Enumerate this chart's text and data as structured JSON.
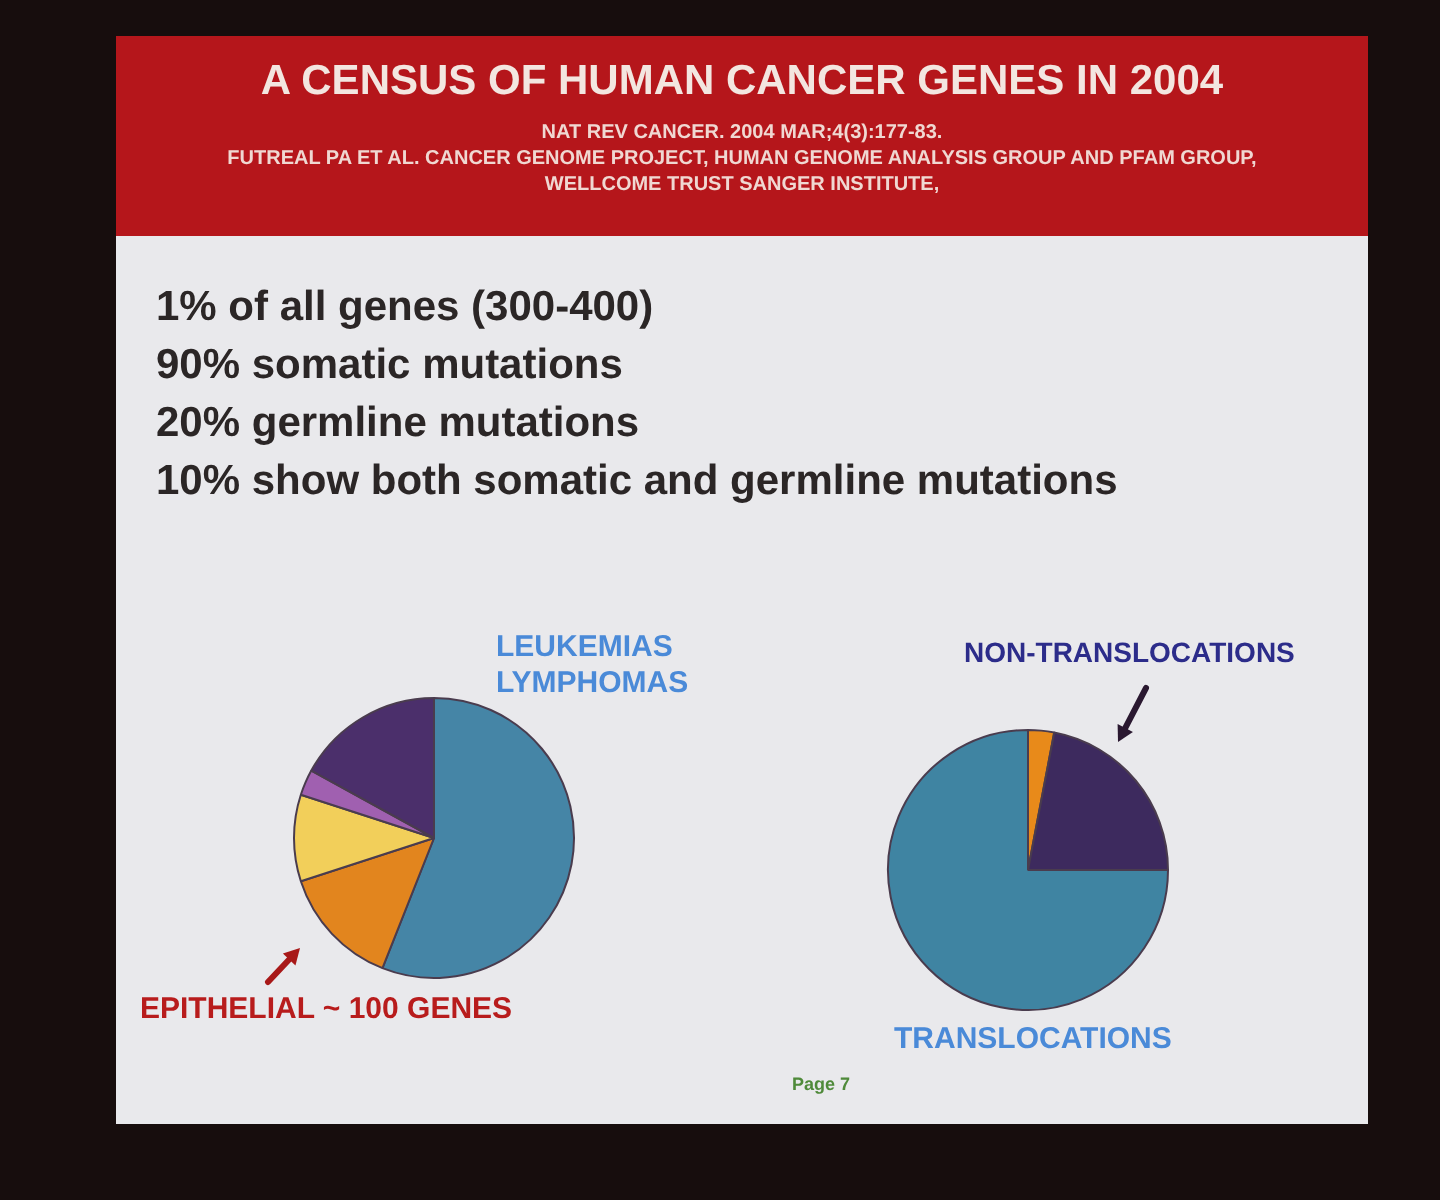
{
  "chart_data": [
    {
      "type": "pie",
      "title": "A CENSUS OF HUMAN CANCER GENES IN 2004",
      "subtitle": "NAT REV CANCER. 2004 MAR;4(3):177-83.\nFUTREAL PA ET AL. CANCER GENOME PROJECT, HUMAN GENOME ANALYSIS GROUP AND PFAM GROUP,\nWELLCOME TRUST SANGER INSTITUTE,",
      "annotations": [
        "1% of all genes (300-400)",
        "90% somatic mutations",
        "20% germline mutations",
        "10% show both somatic and germline mutations"
      ],
      "categories": [
        "LEUKEMIAS LYMPHOMAS",
        "EPITHELIAL ~ 100 GENES",
        null,
        null,
        null
      ],
      "values": [
        56,
        14,
        10,
        3,
        17
      ],
      "colors": [
        "#4585a6",
        "#e2851e",
        "#f2cf5a",
        "#a060b0",
        "#4b2f6b"
      ]
    },
    {
      "type": "pie",
      "annotations": [
        "Page 7"
      ],
      "categories": [
        null,
        "NON-TRANSLOCATIONS",
        "TRANSLOCATIONS"
      ],
      "values": [
        3,
        22,
        75
      ],
      "colors": [
        "#e88a1a",
        "#3d2a5e",
        "#3f84a2"
      ]
    }
  ]
}
